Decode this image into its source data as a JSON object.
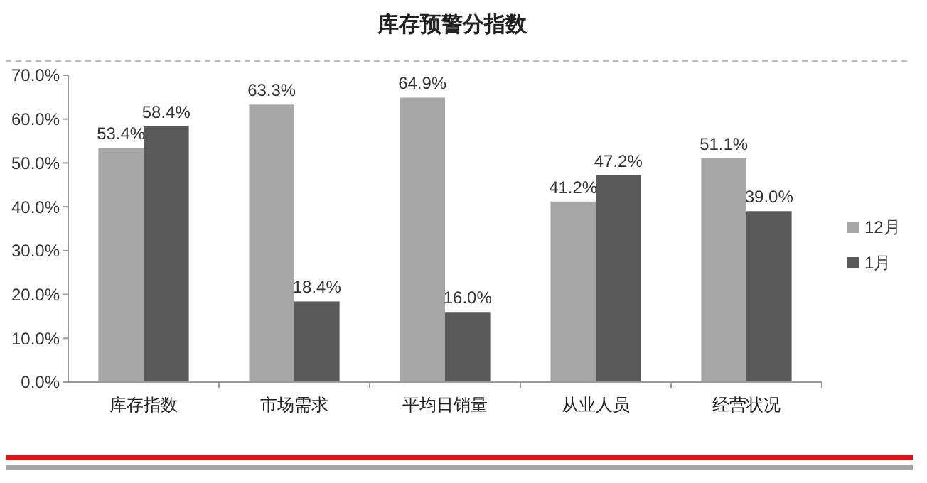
{
  "chart_data": {
    "type": "bar",
    "title": "库存预警分指数",
    "categories": [
      "库存指数",
      "市场需求",
      "平均日销量",
      "从业人员",
      "经营状况"
    ],
    "series": [
      {
        "name": "12月",
        "color": "#a6a6a6",
        "values": [
          53.4,
          63.3,
          64.9,
          41.2,
          51.1
        ]
      },
      {
        "name": "1月",
        "color": "#595959",
        "values": [
          58.4,
          18.4,
          16.0,
          47.2,
          39.0
        ]
      }
    ],
    "ylim": [
      0,
      70
    ],
    "yticks": [
      {
        "value": 0,
        "label": "0.0%"
      },
      {
        "value": 10,
        "label": "10.0%"
      },
      {
        "value": 20,
        "label": "20.0%"
      },
      {
        "value": 30,
        "label": "30.0%"
      },
      {
        "value": 40,
        "label": "40.0%"
      },
      {
        "value": 50,
        "label": "50.0%"
      },
      {
        "value": 60,
        "label": "60.0%"
      },
      {
        "value": 70,
        "label": "70.0%"
      }
    ],
    "value_labels": [
      [
        "53.4%",
        "63.3%",
        "64.9%",
        "41.2%",
        "51.1%"
      ],
      [
        "58.4%",
        "18.4%",
        "16.0%",
        "47.2%",
        "39.0%"
      ]
    ],
    "grid": false,
    "legend": "right"
  }
}
